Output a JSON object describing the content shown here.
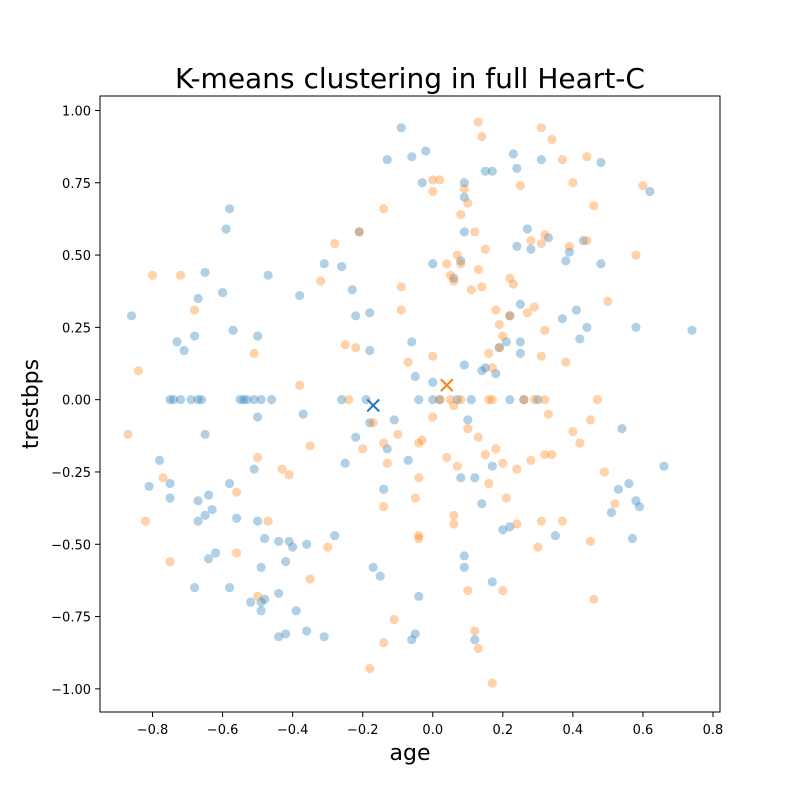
{
  "chart_data": {
    "type": "scatter",
    "title": "K-means clustering in full Heart-C",
    "xlabel": "age",
    "ylabel": "trestbps",
    "xlim": [
      -0.95,
      0.82
    ],
    "ylim": [
      -1.08,
      1.05
    ],
    "xticks": [
      "−0.8",
      "−0.6",
      "−0.4",
      "−0.2",
      "0.0",
      "0.2",
      "0.4",
      "0.6",
      "0.8"
    ],
    "xtick_values": [
      -0.8,
      -0.6,
      -0.4,
      -0.2,
      0.0,
      0.2,
      0.4,
      0.6,
      0.8
    ],
    "yticks": [
      "−1.00",
      "−0.75",
      "−0.50",
      "−0.25",
      "0.00",
      "0.25",
      "0.50",
      "0.75",
      "1.00"
    ],
    "ytick_values": [
      -1.0,
      -0.75,
      -0.5,
      -0.25,
      0.0,
      0.25,
      0.5,
      0.75,
      1.0
    ],
    "grid": false,
    "series": [
      {
        "color": "#1f77b4",
        "opacity": 0.35,
        "points": [
          [
            -0.86,
            0.29
          ],
          [
            -0.75,
            0.0
          ],
          [
            -0.74,
            0.0
          ],
          [
            -0.72,
            0.0
          ],
          [
            -0.67,
            0.0
          ],
          [
            -0.66,
            0.0
          ],
          [
            -0.55,
            0.0
          ],
          [
            -0.54,
            0.0
          ],
          [
            -0.53,
            0.0
          ],
          [
            -0.51,
            0.0
          ],
          [
            -0.49,
            0.0
          ],
          [
            -0.46,
            0.0
          ],
          [
            -0.69,
            0.0
          ],
          [
            -0.73,
            0.2
          ],
          [
            -0.71,
            0.17
          ],
          [
            -0.68,
            0.22
          ],
          [
            -0.67,
            0.35
          ],
          [
            -0.65,
            0.44
          ],
          [
            -0.6,
            0.37
          ],
          [
            -0.59,
            0.59
          ],
          [
            -0.58,
            0.66
          ],
          [
            -0.57,
            0.24
          ],
          [
            -0.5,
            0.22
          ],
          [
            -0.47,
            0.43
          ],
          [
            -0.38,
            0.36
          ],
          [
            -0.31,
            0.47
          ],
          [
            -0.26,
            0.46
          ],
          [
            -0.23,
            0.38
          ],
          [
            -0.22,
            0.29
          ],
          [
            -0.21,
            0.58
          ],
          [
            -0.18,
            0.3
          ],
          [
            -0.18,
            0.17
          ],
          [
            -0.13,
            0.83
          ],
          [
            -0.09,
            0.94
          ],
          [
            -0.06,
            0.84
          ],
          [
            -0.02,
            0.86
          ],
          [
            -0.03,
            0.75
          ],
          [
            -0.78,
            -0.21
          ],
          [
            -0.81,
            -0.3
          ],
          [
            -0.75,
            -0.29
          ],
          [
            -0.75,
            -0.34
          ],
          [
            -0.67,
            -0.35
          ],
          [
            -0.67,
            -0.42
          ],
          [
            -0.65,
            -0.4
          ],
          [
            -0.64,
            -0.33
          ],
          [
            -0.63,
            -0.38
          ],
          [
            -0.65,
            -0.12
          ],
          [
            -0.58,
            -0.29
          ],
          [
            -0.56,
            -0.41
          ],
          [
            -0.5,
            -0.42
          ],
          [
            -0.5,
            -0.06
          ],
          [
            -0.51,
            -0.24
          ],
          [
            -0.62,
            -0.53
          ],
          [
            -0.64,
            -0.55
          ],
          [
            -0.58,
            -0.65
          ],
          [
            -0.49,
            -0.58
          ],
          [
            -0.48,
            -0.48
          ],
          [
            -0.44,
            -0.49
          ],
          [
            -0.41,
            -0.49
          ],
          [
            -0.42,
            -0.56
          ],
          [
            -0.4,
            -0.51
          ],
          [
            -0.36,
            -0.5
          ],
          [
            -0.28,
            -0.47
          ],
          [
            -0.44,
            -0.67
          ],
          [
            -0.48,
            -0.69
          ],
          [
            -0.49,
            -0.7
          ],
          [
            -0.52,
            -0.7
          ],
          [
            -0.49,
            -0.73
          ],
          [
            -0.39,
            -0.73
          ],
          [
            -0.44,
            -0.82
          ],
          [
            -0.42,
            -0.81
          ],
          [
            -0.36,
            -0.8
          ],
          [
            -0.31,
            -0.82
          ],
          [
            -0.68,
            -0.65
          ],
          [
            -0.25,
            -0.22
          ],
          [
            -0.22,
            -0.13
          ],
          [
            -0.18,
            -0.08
          ],
          [
            -0.14,
            -0.31
          ],
          [
            -0.13,
            -0.17
          ],
          [
            -0.11,
            -0.07
          ],
          [
            -0.07,
            -0.21
          ],
          [
            -0.17,
            -0.58
          ],
          [
            -0.15,
            -0.61
          ],
          [
            -0.06,
            -0.83
          ],
          [
            -0.05,
            -0.81
          ],
          [
            -0.04,
            -0.68
          ],
          [
            -0.37,
            -0.05
          ],
          [
            -0.26,
            0.0
          ],
          [
            -0.19,
            0.0
          ],
          [
            -0.04,
            0.0
          ],
          [
            0.0,
            0.0
          ],
          [
            0.02,
            0.0
          ],
          [
            0.07,
            0.0
          ],
          [
            -0.06,
            0.2
          ],
          [
            -0.05,
            0.08
          ],
          [
            0.0,
            0.06
          ],
          [
            0.0,
            0.47
          ],
          [
            0.06,
            0.42
          ],
          [
            0.08,
            0.48
          ],
          [
            0.09,
            0.58
          ],
          [
            0.09,
            0.7
          ],
          [
            0.09,
            0.75
          ],
          [
            0.14,
            0.1
          ],
          [
            0.15,
            0.11
          ],
          [
            0.18,
            0.09
          ],
          [
            0.19,
            0.18
          ],
          [
            0.21,
            0.2
          ],
          [
            0.22,
            0.29
          ],
          [
            0.25,
            0.16
          ],
          [
            0.25,
            0.2
          ],
          [
            0.25,
            0.33
          ],
          [
            0.28,
            0.52
          ],
          [
            0.24,
            0.53
          ],
          [
            0.27,
            0.59
          ],
          [
            0.33,
            0.56
          ],
          [
            0.38,
            0.48
          ],
          [
            0.39,
            0.51
          ],
          [
            0.43,
            0.55
          ],
          [
            0.41,
            0.31
          ],
          [
            0.42,
            0.21
          ],
          [
            0.44,
            0.25
          ],
          [
            0.37,
            0.28
          ],
          [
            0.15,
            0.79
          ],
          [
            0.17,
            0.79
          ],
          [
            0.23,
            0.85
          ],
          [
            0.24,
            0.8
          ],
          [
            0.31,
            0.83
          ],
          [
            0.48,
            0.82
          ],
          [
            0.48,
            0.47
          ],
          [
            0.58,
            0.25
          ],
          [
            0.62,
            0.72
          ],
          [
            0.74,
            0.24
          ],
          [
            0.09,
            0.12
          ],
          [
            0.1,
            -0.07
          ],
          [
            0.08,
            -0.27
          ],
          [
            0.12,
            -0.27
          ],
          [
            0.17,
            -0.23
          ],
          [
            0.14,
            -0.36
          ],
          [
            0.09,
            -0.54
          ],
          [
            0.09,
            -0.58
          ],
          [
            0.17,
            -0.63
          ],
          [
            0.2,
            -0.45
          ],
          [
            0.22,
            -0.44
          ],
          [
            0.12,
            -0.83
          ],
          [
            0.35,
            -0.47
          ],
          [
            0.51,
            -0.39
          ],
          [
            0.53,
            -0.31
          ],
          [
            0.56,
            -0.29
          ],
          [
            0.58,
            -0.35
          ],
          [
            0.59,
            -0.37
          ],
          [
            0.57,
            -0.48
          ],
          [
            0.66,
            -0.23
          ],
          [
            0.54,
            -0.1
          ],
          [
            0.11,
            0.0
          ],
          [
            0.22,
            0.0
          ],
          [
            0.26,
            0.0
          ],
          [
            0.3,
            0.0
          ]
        ]
      },
      {
        "color": "#ff7f0e",
        "opacity": 0.35,
        "points": [
          [
            -0.8,
            0.43
          ],
          [
            -0.72,
            0.43
          ],
          [
            -0.84,
            0.1
          ],
          [
            -0.68,
            0.31
          ],
          [
            -0.51,
            0.16
          ],
          [
            -0.38,
            0.05
          ],
          [
            -0.32,
            0.41
          ],
          [
            -0.28,
            0.54
          ],
          [
            -0.25,
            0.19
          ],
          [
            -0.22,
            0.18
          ],
          [
            -0.21,
            0.58
          ],
          [
            -0.09,
            0.39
          ],
          [
            -0.09,
            0.31
          ],
          [
            -0.14,
            0.66
          ],
          [
            -0.07,
            0.13
          ],
          [
            0.0,
            0.15
          ],
          [
            0.0,
            0.72
          ],
          [
            0.0,
            0.76
          ],
          [
            0.02,
            0.76
          ],
          [
            0.04,
            0.47
          ],
          [
            0.05,
            0.43
          ],
          [
            0.06,
            0.41
          ],
          [
            0.08,
            0.64
          ],
          [
            0.1,
            0.68
          ],
          [
            0.09,
            0.73
          ],
          [
            0.07,
            0.5
          ],
          [
            0.08,
            0.47
          ],
          [
            0.11,
            0.38
          ],
          [
            0.12,
            0.58
          ],
          [
            0.13,
            0.45
          ],
          [
            0.14,
            0.39
          ],
          [
            0.15,
            0.52
          ],
          [
            0.13,
            0.96
          ],
          [
            0.14,
            0.91
          ],
          [
            0.18,
            0.31
          ],
          [
            0.19,
            0.26
          ],
          [
            0.22,
            0.29
          ],
          [
            0.16,
            0.16
          ],
          [
            0.19,
            0.18
          ],
          [
            0.2,
            0.22
          ],
          [
            0.17,
            0.11
          ],
          [
            0.22,
            0.42
          ],
          [
            0.23,
            0.4
          ],
          [
            0.25,
            0.74
          ],
          [
            0.27,
            0.3
          ],
          [
            0.28,
            0.55
          ],
          [
            0.29,
            0.32
          ],
          [
            0.31,
            0.94
          ],
          [
            0.31,
            0.54
          ],
          [
            0.32,
            0.57
          ],
          [
            0.32,
            0.24
          ],
          [
            0.31,
            0.15
          ],
          [
            0.34,
            0.9
          ],
          [
            0.37,
            0.83
          ],
          [
            0.39,
            0.53
          ],
          [
            0.4,
            0.75
          ],
          [
            0.44,
            0.84
          ],
          [
            0.44,
            0.55
          ],
          [
            0.46,
            0.67
          ],
          [
            0.5,
            0.34
          ],
          [
            0.38,
            0.13
          ],
          [
            0.58,
            0.5
          ],
          [
            0.6,
            0.74
          ],
          [
            -0.87,
            -0.12
          ],
          [
            -0.77,
            -0.27
          ],
          [
            -0.82,
            -0.42
          ],
          [
            -0.75,
            -0.56
          ],
          [
            -0.56,
            -0.32
          ],
          [
            -0.56,
            -0.53
          ],
          [
            -0.5,
            -0.2
          ],
          [
            -0.47,
            -0.42
          ],
          [
            -0.43,
            -0.24
          ],
          [
            -0.41,
            -0.26
          ],
          [
            -0.35,
            -0.16
          ],
          [
            -0.35,
            -0.62
          ],
          [
            -0.3,
            -0.51
          ],
          [
            -0.24,
            0.0
          ],
          [
            -0.14,
            -0.15
          ],
          [
            -0.13,
            -0.22
          ],
          [
            -0.14,
            -0.37
          ],
          [
            -0.17,
            -0.08
          ],
          [
            -0.2,
            -0.17
          ],
          [
            -0.1,
            -0.12
          ],
          [
            -0.05,
            -0.34
          ],
          [
            -0.04,
            -0.15
          ],
          [
            -0.03,
            -0.14
          ],
          [
            -0.04,
            -0.27
          ],
          [
            -0.04,
            -0.47
          ],
          [
            -0.04,
            -0.48
          ],
          [
            -0.18,
            -0.93
          ],
          [
            -0.14,
            -0.84
          ],
          [
            -0.11,
            -0.76
          ],
          [
            -0.5,
            -0.68
          ],
          [
            0.0,
            -0.06
          ],
          [
            0.02,
            0.0
          ],
          [
            0.05,
            0.0
          ],
          [
            0.06,
            -0.02
          ],
          [
            0.04,
            -0.2
          ],
          [
            0.07,
            -0.23
          ],
          [
            0.06,
            -0.4
          ],
          [
            0.06,
            -0.43
          ],
          [
            0.1,
            -0.1
          ],
          [
            0.13,
            -0.13
          ],
          [
            0.15,
            -0.19
          ],
          [
            0.18,
            -0.17
          ],
          [
            0.2,
            -0.22
          ],
          [
            0.16,
            -0.29
          ],
          [
            0.21,
            -0.34
          ],
          [
            0.24,
            -0.24
          ],
          [
            0.24,
            -0.43
          ],
          [
            0.1,
            -0.66
          ],
          [
            0.12,
            -0.8
          ],
          [
            0.13,
            -0.86
          ],
          [
            0.2,
            -0.66
          ],
          [
            0.17,
            -0.98
          ],
          [
            0.28,
            -0.21
          ],
          [
            0.32,
            -0.19
          ],
          [
            0.34,
            -0.19
          ],
          [
            0.33,
            -0.05
          ],
          [
            0.31,
            -0.42
          ],
          [
            0.37,
            -0.42
          ],
          [
            0.3,
            -0.51
          ],
          [
            0.4,
            -0.11
          ],
          [
            0.42,
            -0.15
          ],
          [
            0.45,
            -0.07
          ],
          [
            0.47,
            0.0
          ],
          [
            0.49,
            -0.25
          ],
          [
            0.52,
            -0.36
          ],
          [
            0.45,
            -0.49
          ],
          [
            0.46,
            -0.69
          ],
          [
            0.16,
            0.0
          ],
          [
            0.17,
            0.0
          ],
          [
            0.26,
            0.0
          ],
          [
            0.29,
            0.0
          ],
          [
            0.32,
            0.0
          ],
          [
            0.08,
            0.0
          ]
        ]
      }
    ],
    "centroids": [
      {
        "color": "#1f77b4",
        "x": -0.17,
        "y": -0.02,
        "marker": "x"
      },
      {
        "color": "#ff7f0e",
        "x": 0.04,
        "y": 0.05,
        "marker": "x"
      }
    ]
  }
}
